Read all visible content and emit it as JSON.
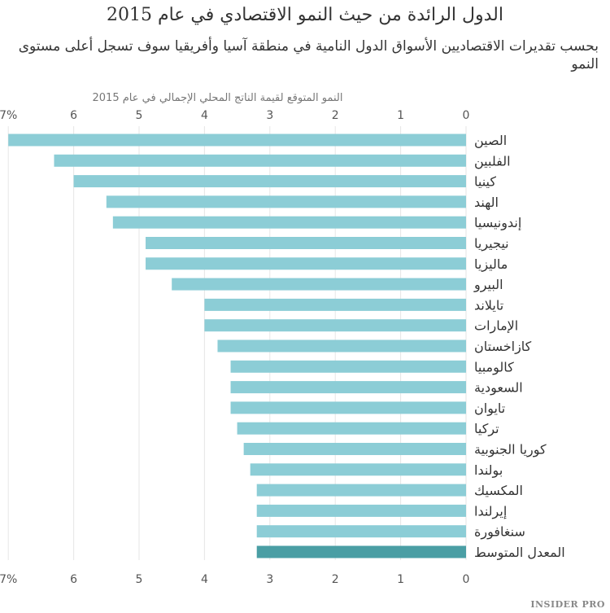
{
  "title": "الدول الرائدة من حيث النمو الاقتصادي في عام 2015",
  "subtitle": "بحسب تقديرات الاقتصاديين الأسواق الدول النامية في منطقة آسيا وأفريقيا سوف تسجل أعلى مستوى النمو",
  "footer": "INSIDER PRO",
  "chart_data": {
    "type": "bar",
    "orientation": "horizontal",
    "xlabel": "النمو المتوقع لقيمة الناتج المحلي الإجمالي في عام 2015",
    "xlim": [
      0,
      7
    ],
    "ticks": [
      "0",
      "1",
      "2",
      "3",
      "4",
      "5",
      "6",
      "7%"
    ],
    "grid": true,
    "categories": [
      "الصين",
      "الفلبين",
      "كينيا",
      "الهند",
      "إندونيسيا",
      "نيجيريا",
      "ماليزيا",
      "البيرو",
      "تايلاند",
      "الإمارات",
      "كازاخستان",
      "كالومبيا",
      "السعودية",
      "تايوان",
      "تركيا",
      "كوريا الجنوبية",
      "بولندا",
      "المكسيك",
      "إيرلندا",
      "سنغافورة",
      "المعدل المتوسط"
    ],
    "values": [
      7.0,
      6.3,
      6.0,
      5.5,
      5.4,
      4.9,
      4.9,
      4.5,
      4.0,
      4.0,
      3.8,
      3.6,
      3.6,
      3.6,
      3.5,
      3.4,
      3.3,
      3.2,
      3.2,
      3.2,
      3.2
    ],
    "colors": {
      "bar": "#8ccdd6",
      "highlight": "#4a9ea4",
      "grid": "#e6e6e6"
    }
  }
}
